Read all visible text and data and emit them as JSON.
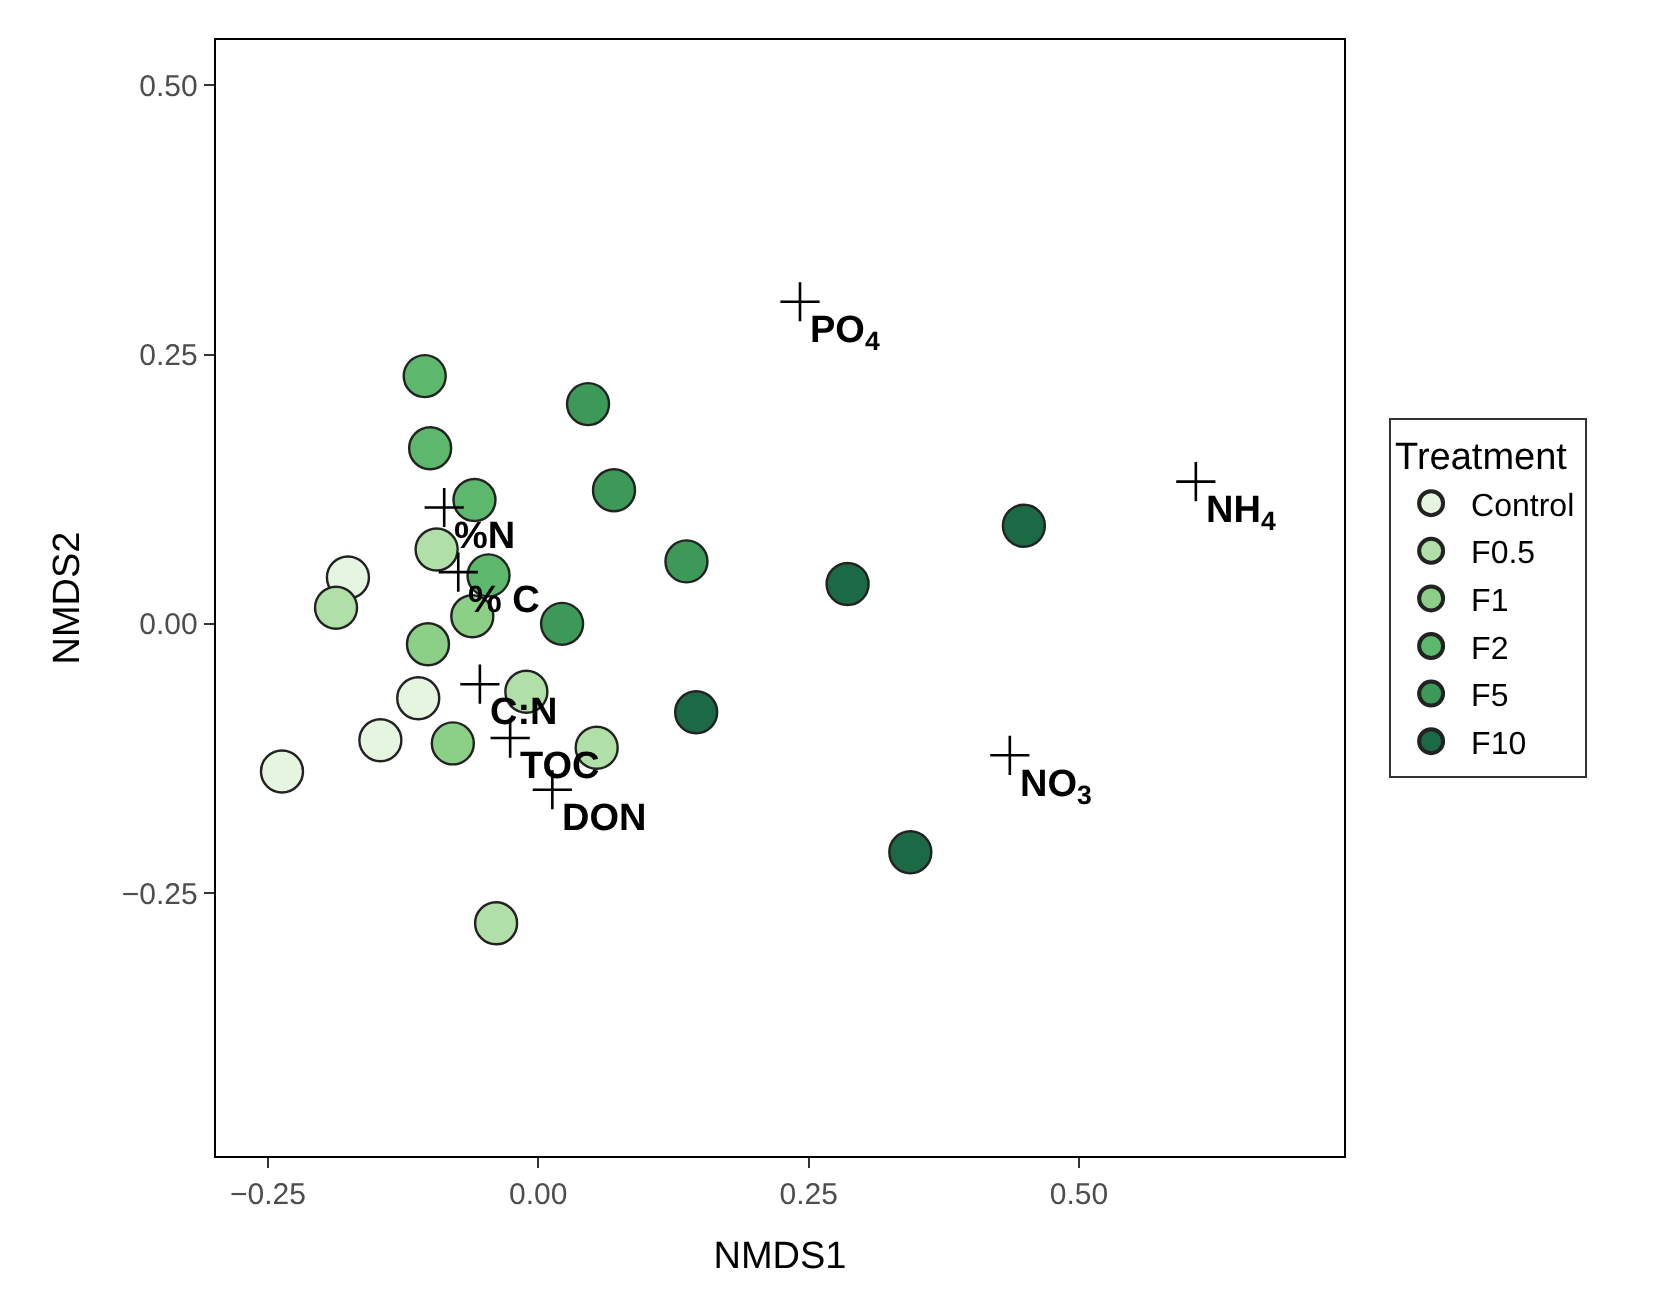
{
  "chart_data": {
    "type": "scatter",
    "xlabel": "NMDS1",
    "ylabel": "NMDS2",
    "legend_title": "Treatment",
    "legend": "right",
    "marker": "circle",
    "xlim": [
      -0.298,
      0.745
    ],
    "ylim": [
      -0.494,
      0.542
    ],
    "xticks": [
      {
        "value": -0.25,
        "label": "−0.25"
      },
      {
        "value": 0,
        "label": "0.00"
      },
      {
        "value": 0.25,
        "label": "0.25"
      },
      {
        "value": 0.5,
        "label": "0.50"
      }
    ],
    "yticks": [
      {
        "value": -0.25,
        "label": "−0.25"
      },
      {
        "value": 0,
        "label": "0.00"
      },
      {
        "value": 0.25,
        "label": "0.25"
      },
      {
        "value": 0.5,
        "label": "0.50"
      }
    ],
    "series": [
      {
        "name": "Control",
        "color": "#e5f5e0",
        "x": [
          -0.176,
          -0.111,
          -0.146,
          -0.237
        ],
        "values": [
          0.043,
          -0.069,
          -0.108,
          -0.137
        ]
      },
      {
        "name": "F0.5",
        "color": "#b0dfa8",
        "x": [
          -0.187,
          -0.039,
          -0.011,
          0.054,
          -0.094
        ],
        "values": [
          0.015,
          -0.278,
          -0.063,
          -0.115,
          0.069
        ]
      },
      {
        "name": "F1",
        "color": "#8ccf87",
        "x": [
          -0.102,
          -0.079,
          -0.061
        ],
        "values": [
          -0.019,
          -0.111,
          0.007
        ]
      },
      {
        "name": "F2",
        "color": "#5db76c",
        "x": [
          -0.105,
          -0.1,
          -0.059,
          -0.046
        ],
        "values": [
          0.23,
          0.163,
          0.115,
          0.045
        ]
      },
      {
        "name": "F5",
        "color": "#3d9958",
        "x": [
          0.046,
          0.07,
          0.137,
          0.022
        ],
        "values": [
          0.204,
          0.124,
          0.058,
          0.0
        ]
      },
      {
        "name": "F10",
        "color": "#1c6a45",
        "x": [
          0.146,
          0.286,
          0.449,
          0.344
        ],
        "values": [
          -0.082,
          0.037,
          0.091,
          -0.212
        ]
      },
      {
        "color": "#000000",
        "marker": "cross",
        "x": [
          0.242,
          0.608,
          0.436,
          -0.087,
          -0.074,
          -0.054,
          -0.026,
          0.013
        ],
        "values": [
          0.299,
          0.132,
          -0.122,
          0.108,
          0.048,
          -0.056,
          -0.106,
          -0.154
        ]
      }
    ],
    "annotations": [
      {
        "text": "PO$_{4}$",
        "x": 0.242,
        "y": 0.299
      },
      {
        "text": "NH$_{4}$",
        "x": 0.608,
        "y": 0.132
      },
      {
        "text": "NO$_{3}$",
        "x": 0.436,
        "y": -0.122
      },
      {
        "text": "%N",
        "x": -0.087,
        "y": 0.108
      },
      {
        "text": "% C",
        "x": -0.074,
        "y": 0.048
      },
      {
        "text": "C:N",
        "x": -0.054,
        "y": -0.056
      },
      {
        "text": "TOC",
        "x": -0.026,
        "y": -0.106
      },
      {
        "text": "DON",
        "x": 0.013,
        "y": -0.154
      }
    ]
  }
}
